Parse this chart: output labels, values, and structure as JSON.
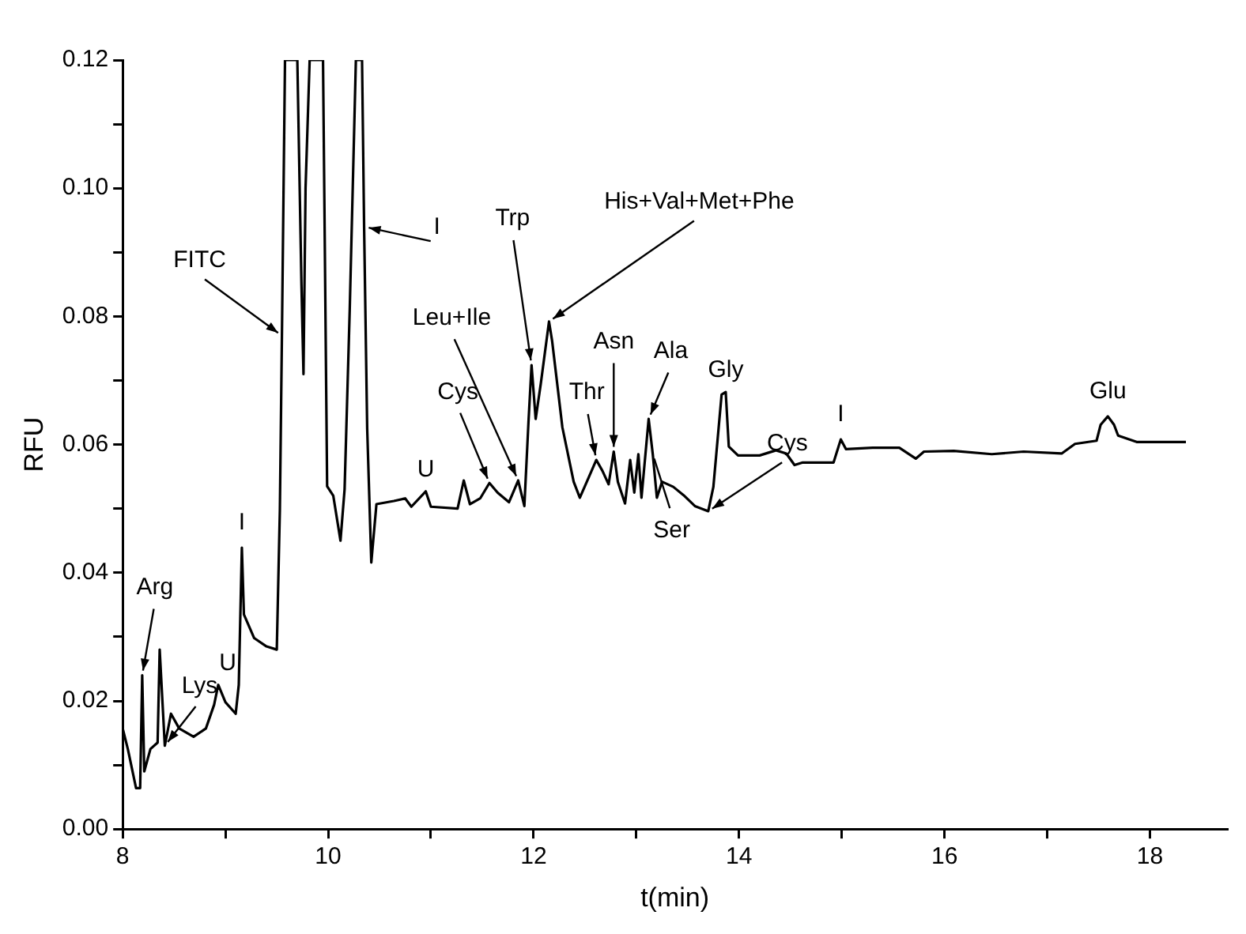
{
  "chart_data": {
    "type": "line",
    "xlabel": "t(min)",
    "ylabel": "RFU",
    "xlim": [
      8,
      18.75
    ],
    "ylim": [
      0,
      0.12
    ],
    "xticks": [
      8,
      {
        "value": 9,
        "label": null
      },
      10,
      {
        "value": 11,
        "label": null
      },
      12,
      {
        "value": 13,
        "label": null
      },
      14,
      {
        "value": 15,
        "label": null
      },
      16,
      {
        "value": 17,
        "label": null
      },
      18
    ],
    "yticks": [
      {
        "value": 0,
        "label": "0.00"
      },
      {
        "value": 0.01,
        "label": null
      },
      {
        "value": 0.02,
        "label": "0.02"
      },
      {
        "value": 0.03,
        "label": null
      },
      {
        "value": 0.04,
        "label": "0.04"
      },
      {
        "value": 0.05,
        "label": null
      },
      {
        "value": 0.06,
        "label": "0.06"
      },
      {
        "value": 0.07,
        "label": null
      },
      {
        "value": 0.08,
        "label": "0.08"
      },
      {
        "value": 0.09,
        "label": null
      },
      {
        "value": 0.1,
        "label": "0.10"
      },
      {
        "value": 0.11,
        "label": null
      },
      {
        "value": 0.12,
        "label": "0.12"
      }
    ],
    "grid": false,
    "legend": false,
    "marker": "none",
    "line_style": "solid",
    "series": [
      {
        "color": "#000000",
        "x": [
          8,
          8.05,
          8.13,
          8.17,
          8.19,
          8.21,
          8.27,
          8.34,
          8.36,
          8.41,
          8.47,
          8.55,
          8.69,
          8.81,
          8.89,
          8.93,
          9.0,
          9.1,
          9.13,
          9.16,
          9.18,
          9.28,
          9.4,
          9.5,
          9.53,
          9.55,
          9.58,
          9.7,
          9.74,
          9.76,
          9.78,
          9.82,
          9.95,
          9.99,
          10.05,
          10.12,
          10.16,
          10.21,
          10.27,
          10.33,
          10.35,
          10.38,
          10.42,
          10.47,
          10.64,
          10.75,
          10.81,
          10.95,
          11.0,
          11.26,
          11.32,
          11.38,
          11.48,
          11.57,
          11.65,
          11.76,
          11.85,
          11.91,
          11.95,
          11.98,
          12.02,
          12.07,
          12.15,
          12.18,
          12.28,
          12.39,
          12.45,
          12.54,
          12.61,
          12.67,
          12.73,
          12.78,
          12.82,
          12.89,
          12.94,
          12.98,
          13.02,
          13.05,
          13.12,
          13.16,
          13.2,
          13.25,
          13.36,
          13.46,
          13.57,
          13.7,
          13.75,
          13.83,
          13.87,
          13.9,
          13.99,
          14.2,
          14.36,
          14.46,
          14.54,
          14.62,
          14.92,
          14.99,
          15.04,
          15.3,
          15.56,
          15.72,
          15.8,
          16.09,
          16.46,
          16.77,
          17.14,
          17.27,
          17.48,
          17.52,
          17.59,
          17.65,
          17.69,
          17.87,
          18.35
        ],
        "values": [
          0.0157,
          0.0125,
          0.0064,
          0.0064,
          0.024,
          0.009,
          0.0125,
          0.0135,
          0.028,
          0.013,
          0.018,
          0.0157,
          0.0144,
          0.0157,
          0.0194,
          0.0225,
          0.0198,
          0.018,
          0.0225,
          0.0439,
          0.0335,
          0.0298,
          0.0285,
          0.028,
          0.0498,
          0.077,
          0.12,
          0.12,
          0.085,
          0.071,
          0.1,
          0.12,
          0.12,
          0.0535,
          0.052,
          0.045,
          0.053,
          0.081,
          0.12,
          0.12,
          0.094,
          0.0625,
          0.0416,
          0.0507,
          0.0512,
          0.0516,
          0.0503,
          0.0527,
          0.0503,
          0.05,
          0.0544,
          0.0507,
          0.0516,
          0.054,
          0.0525,
          0.051,
          0.0544,
          0.0504,
          0.0635,
          0.0724,
          0.064,
          0.0695,
          0.0792,
          0.0762,
          0.0627,
          0.0542,
          0.0517,
          0.055,
          0.0576,
          0.0559,
          0.0538,
          0.0589,
          0.0542,
          0.0508,
          0.0576,
          0.0525,
          0.0585,
          0.0517,
          0.064,
          0.0585,
          0.0517,
          0.0542,
          0.0534,
          0.0521,
          0.0504,
          0.0496,
          0.0534,
          0.0678,
          0.0682,
          0.0597,
          0.0583,
          0.0583,
          0.0591,
          0.0586,
          0.0568,
          0.0572,
          0.0572,
          0.0608,
          0.0593,
          0.0595,
          0.0595,
          0.0578,
          0.0589,
          0.059,
          0.0585,
          0.0589,
          0.0586,
          0.0601,
          0.0606,
          0.0631,
          0.0644,
          0.0631,
          0.0614,
          0.0604,
          0.0604
        ]
      }
    ],
    "annotations": [
      {
        "text": "Arg",
        "x": 8.19,
        "y": 0.024
      },
      {
        "text": "Lys",
        "x": 8.41,
        "y": 0.013
      },
      {
        "text": "U",
        "x": 8.93,
        "y": 0.0225
      },
      {
        "text": "I",
        "x": 9.16,
        "y": 0.0439
      },
      {
        "text": "FITC",
        "x": 9.55,
        "y": 0.077
      },
      {
        "text": "I",
        "x": 10.35,
        "y": 0.094
      },
      {
        "text": "U",
        "x": 10.95,
        "y": 0.0527
      },
      {
        "text": "Cys",
        "x": 11.57,
        "y": 0.054
      },
      {
        "text": "Leu+Ile",
        "x": 11.85,
        "y": 0.0544
      },
      {
        "text": "Trp",
        "x": 11.98,
        "y": 0.0724
      },
      {
        "text": "His+Val+Met+Phe",
        "x": 12.15,
        "y": 0.0792
      },
      {
        "text": "Thr",
        "x": 12.61,
        "y": 0.0576
      },
      {
        "text": "Asn",
        "x": 12.78,
        "y": 0.0589
      },
      {
        "text": "Ala",
        "x": 13.12,
        "y": 0.064
      },
      {
        "text": "Ser",
        "x": 13.16,
        "y": 0.0585
      },
      {
        "text": "Gly",
        "x": 13.87,
        "y": 0.0682
      },
      {
        "text": "Cys",
        "x": 13.7,
        "y": 0.0496
      },
      {
        "text": "I",
        "x": 14.99,
        "y": 0.0608
      },
      {
        "text": "Glu",
        "x": 17.59,
        "y": 0.0644
      }
    ]
  }
}
